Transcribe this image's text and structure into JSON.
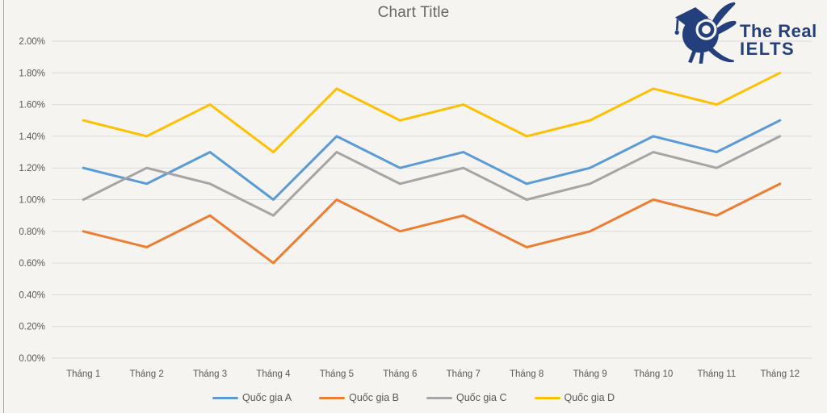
{
  "chart": {
    "title": "Chart Title"
  },
  "logo": {
    "line1": "The Real",
    "line2": "IELTS",
    "color": "#24407c",
    "mascot": "bird-with-graduation-cap-icon"
  },
  "chart_data": {
    "type": "line",
    "title": "Chart Title",
    "xlabel": "",
    "ylabel": "",
    "categories": [
      "Tháng 1",
      "Tháng 2",
      "Tháng 3",
      "Tháng 4",
      "Tháng 5",
      "Tháng 6",
      "Tháng 7",
      "Tháng 8",
      "Tháng 9",
      "Tháng 10",
      "Tháng 11",
      "Tháng 12"
    ],
    "series": [
      {
        "name": "Quốc gia A",
        "color": "#5B9BD5",
        "values": [
          1.2,
          1.1,
          1.3,
          1.0,
          1.4,
          1.2,
          1.3,
          1.1,
          1.2,
          1.4,
          1.3,
          1.5
        ]
      },
      {
        "name": "Quốc gia B",
        "color": "#ED7D31",
        "values": [
          0.8,
          0.7,
          0.9,
          0.6,
          1.0,
          0.8,
          0.9,
          0.7,
          0.8,
          1.0,
          0.9,
          1.1
        ]
      },
      {
        "name": "Quốc gia C",
        "color": "#A5A5A5",
        "values": [
          1.0,
          1.2,
          1.1,
          0.9,
          1.3,
          1.1,
          1.2,
          1.0,
          1.1,
          1.3,
          1.2,
          1.4
        ]
      },
      {
        "name": "Quốc gia D",
        "color": "#FFC000",
        "values": [
          1.5,
          1.4,
          1.6,
          1.3,
          1.7,
          1.5,
          1.6,
          1.4,
          1.5,
          1.7,
          1.6,
          1.8
        ]
      }
    ],
    "ylim": [
      0.0,
      2.0
    ],
    "y_step": 0.2,
    "y_tick_labels": [
      "0.00%",
      "0.20%",
      "0.40%",
      "0.60%",
      "0.80%",
      "1.00%",
      "1.20%",
      "1.40%",
      "1.60%",
      "1.80%",
      "2.00%"
    ],
    "grid": true,
    "grid_color": "#dadada",
    "axis_text_color": "#595959",
    "legend_position": "bottom"
  }
}
